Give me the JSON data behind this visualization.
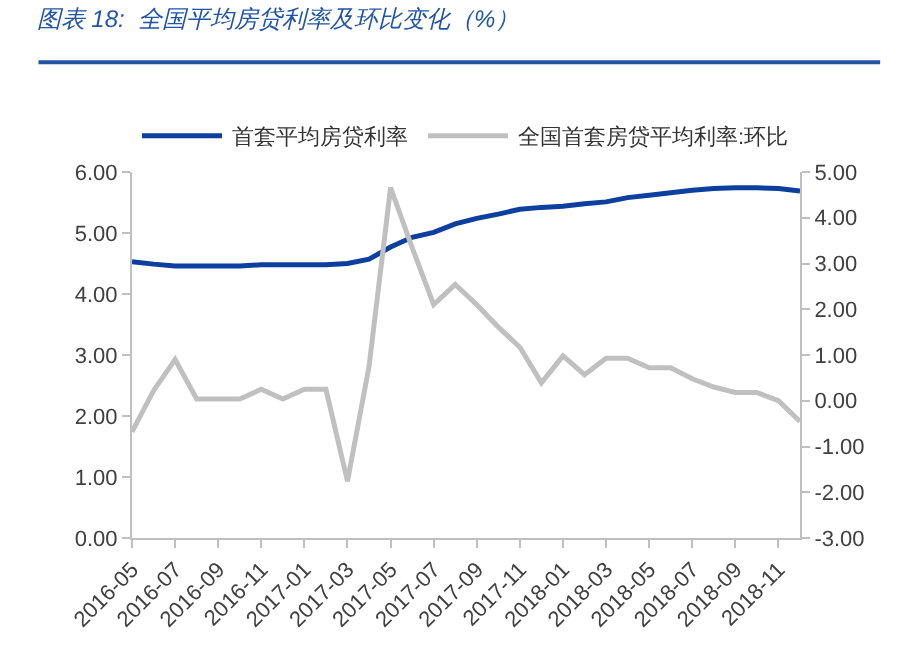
{
  "chart_data": {
    "type": "line",
    "title": "图表 18:  全国平均房贷利率及环比变化（%）",
    "categories": [
      "2016-05",
      null,
      "2016-07",
      null,
      "2016-09",
      null,
      "2016-11",
      null,
      "2017-01",
      null,
      "2017-03",
      null,
      "2017-05",
      null,
      "2017-07",
      null,
      "2017-09",
      null,
      "2017-11",
      null,
      "2018-01",
      null,
      "2018-03",
      null,
      "2018-05",
      null,
      "2018-07",
      null,
      "2018-09",
      null,
      "2018-11",
      null
    ],
    "series": [
      {
        "name": "首套平均房贷利率",
        "color": "#0d3f9f",
        "values": [
          4.53,
          4.49,
          4.46,
          4.46,
          4.46,
          4.46,
          4.48,
          4.48,
          4.48,
          4.48,
          4.5,
          4.57,
          4.77,
          4.93,
          5.01,
          5.15,
          5.24,
          5.31,
          5.39,
          5.42,
          5.44,
          5.48,
          5.51,
          5.58,
          5.62,
          5.66,
          5.7,
          5.73,
          5.74,
          5.74,
          5.73,
          5.69
        ]
      },
      {
        "name": "全国首套房贷平均利率:环比",
        "color": "#c0c0c0",
        "axis": "y2",
        "values": [
          -0.68,
          0.22,
          0.9,
          0.04,
          0.04,
          0.04,
          0.25,
          0.04,
          0.25,
          0.25,
          -1.76,
          0.75,
          4.66,
          3.35,
          2.1,
          2.54,
          2.1,
          1.61,
          1.17,
          0.39,
          0.98,
          0.57,
          0.93,
          0.93,
          0.72,
          0.72,
          0.48,
          0.3,
          0.18,
          0.18,
          0.0,
          -0.45
        ]
      }
    ],
    "ylim": [
      0,
      6
    ],
    "yticks": [
      {
        "value": 0,
        "label": "0.00"
      },
      {
        "value": 1,
        "label": "1.00"
      },
      {
        "value": 2,
        "label": "2.00"
      },
      {
        "value": 3,
        "label": "3.00"
      },
      {
        "value": 4,
        "label": "4.00"
      },
      {
        "value": 5,
        "label": "5.00"
      },
      {
        "value": 6,
        "label": "6.00"
      }
    ],
    "y2lim": [
      -3,
      5
    ],
    "y2ticks": [
      {
        "value": -3,
        "label": "-3.00"
      },
      {
        "value": -2,
        "label": "-2.00"
      },
      {
        "value": -1,
        "label": "-1.00"
      },
      {
        "value": 0,
        "label": "0.00"
      },
      {
        "value": 1,
        "label": "1.00"
      },
      {
        "value": 2,
        "label": "2.00"
      },
      {
        "value": 3,
        "label": "3.00"
      },
      {
        "value": 4,
        "label": "4.00"
      },
      {
        "value": 5,
        "label": "5.00"
      }
    ],
    "legend": "top",
    "grid": false,
    "marker": "none",
    "line_style": "solid"
  }
}
